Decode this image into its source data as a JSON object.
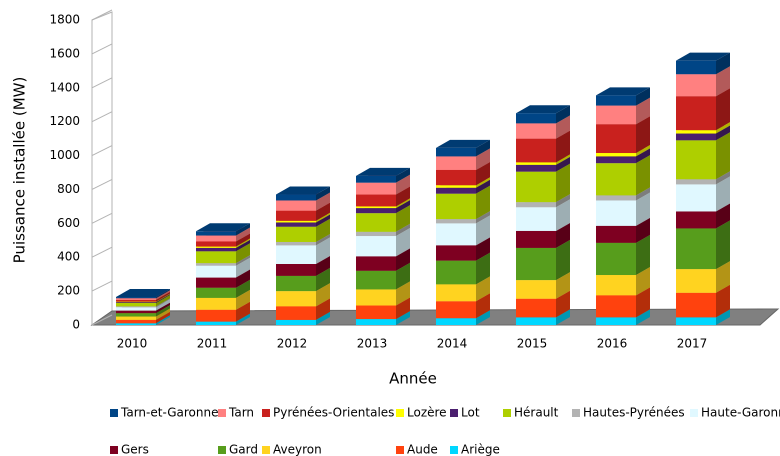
{
  "chart_data": {
    "type": "bar",
    "stacked": true,
    "y_label": "Puissance installée (MW)",
    "x_label": "Année",
    "categories": [
      "2010",
      "2011",
      "2012",
      "2013",
      "2014",
      "2015",
      "2016",
      "2017"
    ],
    "ylim": [
      0,
      1800
    ],
    "yticks": [
      0,
      200,
      400,
      600,
      800,
      1000,
      1200,
      1400,
      1600,
      1800
    ],
    "series": [
      {
        "name": "Ariège",
        "color": "#00d7ff",
        "values": [
          10,
          20,
          30,
          35,
          40,
          45,
          45,
          45
        ]
      },
      {
        "name": "Aude",
        "color": "#ff420e",
        "values": [
          20,
          70,
          80,
          80,
          100,
          110,
          130,
          145
        ]
      },
      {
        "name": "Aveyron",
        "color": "#ffd320",
        "values": [
          20,
          70,
          90,
          95,
          100,
          110,
          120,
          140
        ]
      },
      {
        "name": "Gard",
        "color": "#579d1c",
        "values": [
          20,
          60,
          90,
          110,
          140,
          190,
          190,
          240
        ]
      },
      {
        "name": "Gers",
        "color": "#7e0021",
        "values": [
          15,
          60,
          70,
          85,
          90,
          100,
          100,
          100
        ]
      },
      {
        "name": "Haute-Garonne",
        "color": "#e0f8ff",
        "values": [
          20,
          70,
          110,
          120,
          130,
          140,
          150,
          160
        ]
      },
      {
        "name": "Hautes-Pyrénées",
        "color": "#b3b3b3",
        "values": [
          5,
          15,
          20,
          25,
          25,
          30,
          30,
          30
        ]
      },
      {
        "name": "Hérault",
        "color": "#aecf00",
        "values": [
          20,
          70,
          90,
          110,
          150,
          180,
          190,
          230
        ]
      },
      {
        "name": "Lot",
        "color": "#4b1f6f",
        "values": [
          5,
          20,
          25,
          30,
          35,
          40,
          40,
          40
        ]
      },
      {
        "name": "Lozère",
        "color": "#ffff00",
        "values": [
          3,
          8,
          10,
          10,
          15,
          15,
          20,
          20
        ]
      },
      {
        "name": "Pyrénées-Orientales",
        "color": "#c9211e",
        "values": [
          10,
          30,
          60,
          70,
          90,
          140,
          170,
          200
        ]
      },
      {
        "name": "Tarn",
        "color": "#ff8080",
        "values": [
          10,
          35,
          60,
          70,
          80,
          90,
          110,
          130
        ]
      },
      {
        "name": "Tarn-et-Garonne",
        "color": "#004586",
        "values": [
          7,
          25,
          35,
          40,
          50,
          60,
          60,
          80
        ]
      }
    ]
  }
}
